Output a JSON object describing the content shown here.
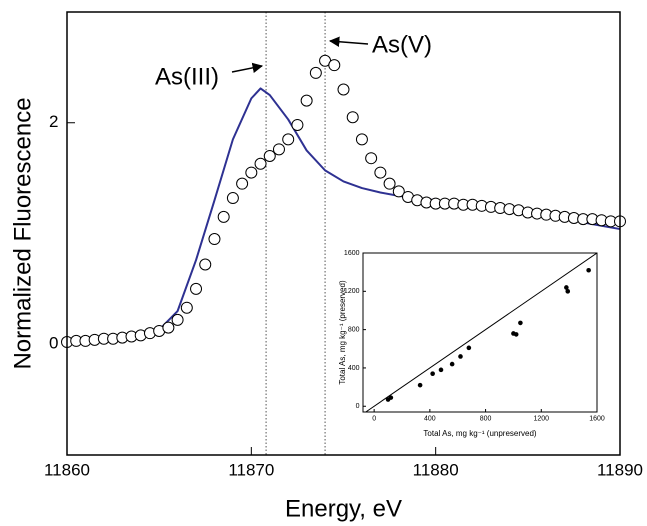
{
  "chart_data": [
    {
      "type": "line",
      "xlabel": "Energy, eV",
      "ylabel": "Normalized Fluorescence",
      "xlim": [
        11860,
        11890
      ],
      "xticks": [
        11860,
        11870,
        11880,
        11890
      ],
      "ylim": [
        -1,
        3
      ],
      "yticks": [
        0,
        2
      ],
      "vlines": [
        11870.8,
        11874
      ],
      "annotations": [
        "As(III)",
        "As(V)"
      ],
      "series": [
        {
          "style": "line",
          "color": "#2e3192",
          "x": [
            11860,
            11861,
            11862,
            11863,
            11864,
            11865,
            11866,
            11867,
            11868,
            11869,
            11870,
            11870.5,
            11871,
            11872,
            11873,
            11874,
            11875,
            11876,
            11877,
            11878,
            11879,
            11880,
            11881,
            11882,
            11883,
            11884,
            11885,
            11886,
            11887,
            11888,
            11889,
            11890
          ],
          "values": [
            0.03,
            0.04,
            0.05,
            0.07,
            0.09,
            0.13,
            0.3,
            0.76,
            1.3,
            1.85,
            2.22,
            2.31,
            2.25,
            2.03,
            1.75,
            1.57,
            1.47,
            1.41,
            1.37,
            1.34,
            1.32,
            1.3,
            1.28,
            1.26,
            1.24,
            1.21,
            1.19,
            1.17,
            1.14,
            1.1,
            1.07,
            1.04
          ]
        },
        {
          "style": "markers",
          "color": "#000000",
          "x": [
            11860,
            11860.5,
            11861,
            11861.5,
            11862,
            11862.5,
            11863,
            11863.5,
            11864,
            11864.5,
            11865,
            11865.5,
            11866,
            11866.5,
            11867,
            11867.5,
            11868,
            11868.5,
            11869,
            11869.5,
            11870,
            11870.5,
            11871,
            11871.5,
            11872,
            11872.5,
            11873,
            11873.5,
            11874,
            11874.5,
            11875,
            11875.5,
            11876,
            11876.5,
            11877,
            11877.5,
            11878,
            11878.5,
            11879,
            11879.5,
            11880,
            11880.5,
            11881,
            11881.5,
            11882,
            11882.5,
            11883,
            11883.5,
            11884,
            11884.5,
            11885,
            11885.5,
            11886,
            11886.5,
            11887,
            11887.5,
            11888,
            11888.5,
            11889,
            11889.5,
            11890
          ],
          "values": [
            0.02,
            0.03,
            0.03,
            0.04,
            0.05,
            0.05,
            0.06,
            0.07,
            0.08,
            0.1,
            0.12,
            0.15,
            0.22,
            0.33,
            0.5,
            0.72,
            0.95,
            1.15,
            1.32,
            1.45,
            1.55,
            1.63,
            1.7,
            1.76,
            1.85,
            1.98,
            2.2,
            2.45,
            2.56,
            2.52,
            2.3,
            2.05,
            1.85,
            1.68,
            1.55,
            1.45,
            1.38,
            1.33,
            1.3,
            1.28,
            1.27,
            1.27,
            1.27,
            1.26,
            1.26,
            1.25,
            1.24,
            1.23,
            1.22,
            1.21,
            1.19,
            1.18,
            1.17,
            1.16,
            1.15,
            1.14,
            1.13,
            1.13,
            1.12,
            1.11,
            1.11
          ]
        }
      ]
    },
    {
      "type": "scatter",
      "xlabel": "Total As, mg kg⁻¹ (unpreserved)",
      "ylabel": "Total As, mg kg⁻¹ (preserved)",
      "xlim": [
        -80,
        1600
      ],
      "xticks": [
        0,
        400,
        800,
        1200,
        1600
      ],
      "ylim": [
        -60,
        1600
      ],
      "yticks": [
        0,
        400,
        800,
        1200,
        1600
      ],
      "identity_line": true,
      "color": "#000000",
      "x": [
        100,
        120,
        330,
        420,
        480,
        560,
        620,
        680,
        1000,
        1020,
        1050,
        1380,
        1390,
        1540
      ],
      "values": [
        70,
        90,
        220,
        340,
        380,
        440,
        520,
        610,
        760,
        750,
        870,
        1240,
        1200,
        1420
      ]
    }
  ]
}
